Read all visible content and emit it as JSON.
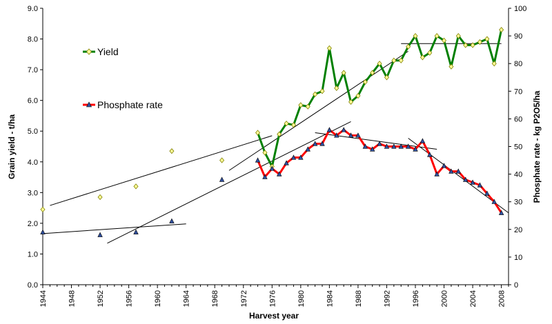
{
  "chart_data": {
    "type": "line",
    "xlabel": "Harvest year",
    "ylabel": "Grain yield - t/ha",
    "y2label": "Phosphate rate - kg P2O5/ha",
    "xlim": [
      1944,
      2009
    ],
    "ylim": [
      0,
      9
    ],
    "y2lim": [
      0,
      100
    ],
    "x_ticks": [
      "1944",
      "1948",
      "1952",
      "1956",
      "1960",
      "1964",
      "1968",
      "1972",
      "1976",
      "1980",
      "1984",
      "1988",
      "1992",
      "1996",
      "2000",
      "2004",
      "2008"
    ],
    "y_ticks": [
      "0.0",
      "1.0",
      "2.0",
      "3.0",
      "4.0",
      "5.0",
      "6.0",
      "7.0",
      "8.0",
      "9.0"
    ],
    "y2_ticks": [
      "0",
      "10",
      "20",
      "30",
      "40",
      "50",
      "60",
      "70",
      "80",
      "90",
      "100"
    ],
    "legend_placement": "left",
    "series": [
      {
        "name": "Yield",
        "axis": "left",
        "color": "#008000",
        "marker_color": "#ffff99",
        "marker": "diamond",
        "early_points": [
          [
            1944,
            2.45
          ],
          [
            1952,
            2.85
          ],
          [
            1957,
            3.2
          ],
          [
            1962,
            4.35
          ],
          [
            1969,
            4.05
          ]
        ],
        "line_points": [
          [
            1974,
            4.95
          ],
          [
            1975,
            4.3
          ],
          [
            1976,
            3.85
          ],
          [
            1977,
            4.9
          ],
          [
            1978,
            5.25
          ],
          [
            1979,
            5.2
          ],
          [
            1980,
            5.85
          ],
          [
            1981,
            5.8
          ],
          [
            1982,
            6.2
          ],
          [
            1983,
            6.3
          ],
          [
            1984,
            7.7
          ],
          [
            1985,
            6.4
          ],
          [
            1986,
            6.9
          ],
          [
            1987,
            5.95
          ],
          [
            1988,
            6.15
          ],
          [
            1989,
            6.6
          ],
          [
            1990,
            6.9
          ],
          [
            1991,
            7.2
          ],
          [
            1992,
            6.75
          ],
          [
            1993,
            7.3
          ],
          [
            1994,
            7.3
          ],
          [
            1995,
            7.75
          ],
          [
            1996,
            8.1
          ],
          [
            1997,
            7.4
          ],
          [
            1998,
            7.55
          ],
          [
            1999,
            8.1
          ],
          [
            2000,
            7.95
          ],
          [
            2001,
            7.1
          ],
          [
            2002,
            8.1
          ],
          [
            2003,
            7.8
          ],
          [
            2004,
            7.8
          ],
          [
            2005,
            7.9
          ],
          [
            2006,
            8.0
          ],
          [
            2007,
            7.2
          ],
          [
            2008,
            8.3
          ]
        ]
      },
      {
        "name": "Phosphate rate",
        "axis": "right",
        "color": "#ff0000",
        "marker_color": "#3050a0",
        "marker": "triangle",
        "early_points": [
          [
            1944,
            19
          ],
          [
            1952,
            18
          ],
          [
            1957,
            19
          ],
          [
            1962,
            23
          ],
          [
            1969,
            38
          ]
        ],
        "line_points": [
          [
            1974,
            45
          ],
          [
            1975,
            39
          ],
          [
            1976,
            42
          ],
          [
            1977,
            40
          ],
          [
            1978,
            44
          ],
          [
            1979,
            46
          ],
          [
            1980,
            46
          ],
          [
            1981,
            49
          ],
          [
            1982,
            51
          ],
          [
            1983,
            51
          ],
          [
            1984,
            56
          ],
          [
            1985,
            54
          ],
          [
            1986,
            56
          ],
          [
            1987,
            54
          ],
          [
            1988,
            54
          ],
          [
            1989,
            50
          ],
          [
            1990,
            49
          ],
          [
            1991,
            51
          ],
          [
            1992,
            50
          ],
          [
            1993,
            50
          ],
          [
            1994,
            50
          ],
          [
            1995,
            50
          ],
          [
            1996,
            49
          ],
          [
            1997,
            52
          ],
          [
            1998,
            47
          ],
          [
            1999,
            40
          ],
          [
            2000,
            43
          ],
          [
            2001,
            41
          ],
          [
            2002,
            41
          ],
          [
            2003,
            38
          ],
          [
            2004,
            37
          ],
          [
            2005,
            36
          ],
          [
            2006,
            33
          ],
          [
            2007,
            30
          ],
          [
            2008,
            26
          ]
        ]
      }
    ],
    "trendlines": [
      {
        "axis": "left",
        "from": [
          1945,
          2.58
        ],
        "to": [
          1976,
          4.85
        ]
      },
      {
        "axis": "left",
        "from": [
          1970,
          3.72
        ],
        "to": [
          1995,
          7.6
        ]
      },
      {
        "axis": "left",
        "from": [
          1994,
          7.85
        ],
        "to": [
          2008,
          7.85
        ]
      },
      {
        "axis": "right",
        "from": [
          1944,
          18.5
        ],
        "to": [
          1964,
          22
        ]
      },
      {
        "axis": "right",
        "from": [
          1953,
          15
        ],
        "to": [
          1987,
          59
        ]
      },
      {
        "axis": "right",
        "from": [
          1982,
          55
        ],
        "to": [
          1999,
          49
        ]
      },
      {
        "axis": "right",
        "from": [
          1995,
          53
        ],
        "to": [
          2009,
          26
        ]
      }
    ]
  }
}
